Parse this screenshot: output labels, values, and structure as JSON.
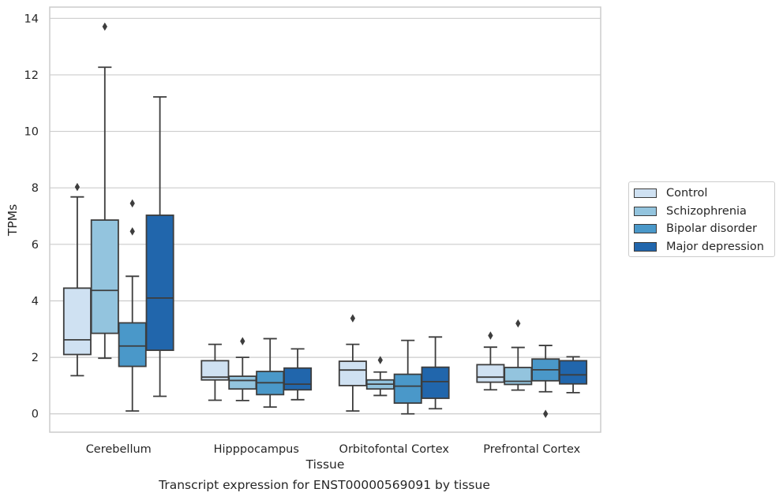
{
  "chart_data": {
    "type": "boxplot",
    "title": "",
    "xlabel": "Tissue",
    "ylabel": "TPMs",
    "ylim": [
      -0.65,
      14.4
    ],
    "yticks": [
      0,
      2,
      4,
      6,
      8,
      10,
      12,
      14
    ],
    "grid": true,
    "legend_position": "right",
    "categories": [
      "Cerebellum",
      "Hipppocampus",
      "Orbitofontal Cortex",
      "Prefrontal Cortex"
    ],
    "series": [
      {
        "name": "Control",
        "color": "#cfe1f2",
        "boxes": [
          {
            "whisker_low": 1.35,
            "q1": 2.1,
            "median": 2.62,
            "q3": 4.45,
            "whisker_high": 7.68,
            "outliers": [
              8.03
            ]
          },
          {
            "whisker_low": 0.48,
            "q1": 1.2,
            "median": 1.3,
            "q3": 1.88,
            "whisker_high": 2.46,
            "outliers": []
          },
          {
            "whisker_low": 0.1,
            "q1": 1.0,
            "median": 1.55,
            "q3": 1.86,
            "whisker_high": 2.46,
            "outliers": [
              3.38
            ]
          },
          {
            "whisker_low": 0.85,
            "q1": 1.12,
            "median": 1.3,
            "q3": 1.74,
            "whisker_high": 2.36,
            "outliers": [
              2.77
            ]
          }
        ]
      },
      {
        "name": "Schizophrenia",
        "color": "#93c4de",
        "boxes": [
          {
            "whisker_low": 1.97,
            "q1": 2.85,
            "median": 4.37,
            "q3": 6.86,
            "whisker_high": 12.27,
            "outliers": [
              13.71
            ]
          },
          {
            "whisker_low": 0.47,
            "q1": 0.88,
            "median": 1.18,
            "q3": 1.33,
            "whisker_high": 2.0,
            "outliers": [
              2.57
            ]
          },
          {
            "whisker_low": 0.65,
            "q1": 0.88,
            "median": 1.05,
            "q3": 1.2,
            "whisker_high": 1.48,
            "outliers": [
              1.9
            ]
          },
          {
            "whisker_low": 0.84,
            "q1": 1.04,
            "median": 1.15,
            "q3": 1.64,
            "whisker_high": 2.35,
            "outliers": [
              3.2
            ]
          }
        ]
      },
      {
        "name": "Bipolar disorder",
        "color": "#4a98c9",
        "boxes": [
          {
            "whisker_low": 0.1,
            "q1": 1.68,
            "median": 2.4,
            "q3": 3.22,
            "whisker_high": 4.87,
            "outliers": [
              6.46,
              7.45
            ]
          },
          {
            "whisker_low": 0.24,
            "q1": 0.68,
            "median": 1.1,
            "q3": 1.5,
            "whisker_high": 2.66,
            "outliers": []
          },
          {
            "whisker_low": 0.0,
            "q1": 0.38,
            "median": 0.98,
            "q3": 1.4,
            "whisker_high": 2.6,
            "outliers": []
          },
          {
            "whisker_low": 0.78,
            "q1": 1.17,
            "median": 1.56,
            "q3": 1.94,
            "whisker_high": 2.42,
            "outliers": [
              0.0
            ]
          }
        ]
      },
      {
        "name": "Major depression",
        "color": "#2166ac",
        "boxes": [
          {
            "whisker_low": 0.62,
            "q1": 2.25,
            "median": 4.1,
            "q3": 7.03,
            "whisker_high": 11.22,
            "outliers": []
          },
          {
            "whisker_low": 0.5,
            "q1": 0.85,
            "median": 1.05,
            "q3": 1.62,
            "whisker_high": 2.3,
            "outliers": []
          },
          {
            "whisker_low": 0.18,
            "q1": 0.55,
            "median": 1.14,
            "q3": 1.65,
            "whisker_high": 2.72,
            "outliers": []
          },
          {
            "whisker_low": 0.75,
            "q1": 1.06,
            "median": 1.38,
            "q3": 1.88,
            "whisker_high": 2.02,
            "outliers": []
          }
        ]
      }
    ]
  },
  "caption": "Transcript expression for ENST00000569091 by tissue"
}
